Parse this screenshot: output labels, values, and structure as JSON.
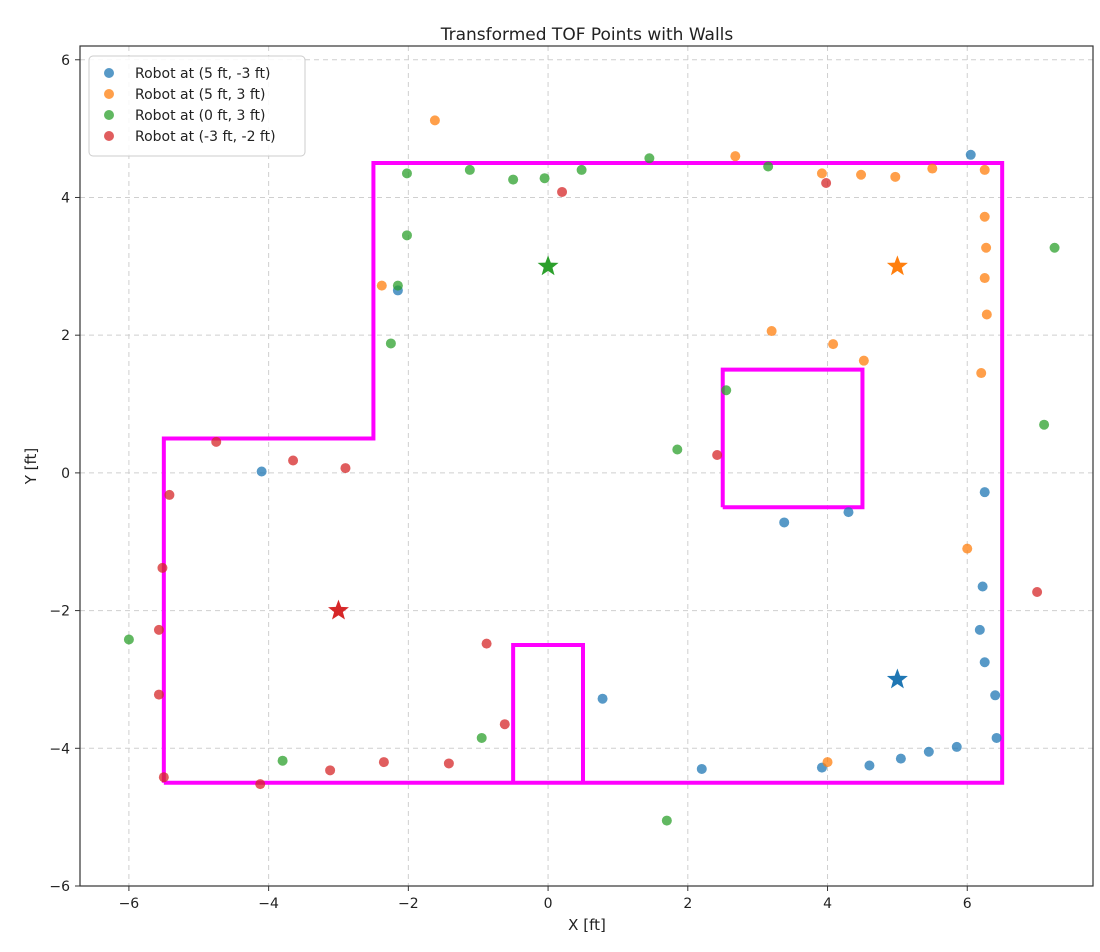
{
  "chart_data": {
    "type": "scatter",
    "title": "Transformed TOF Points with Walls",
    "xlabel": "X [ft]",
    "ylabel": "Y [ft]",
    "xlim": [
      -6.7,
      7.8
    ],
    "ylim": [
      -6,
      6.2
    ],
    "xticks": [
      -6,
      -4,
      -2,
      0,
      2,
      4,
      6
    ],
    "yticks": [
      -6,
      -4,
      -2,
      0,
      2,
      4,
      6
    ],
    "grid": true,
    "legend_position": "top-left",
    "wall_color": "#ff00ff",
    "walls": [
      [
        [
          -5.5,
          -4.5
        ],
        [
          -5.5,
          0.5
        ],
        [
          -2.5,
          0.5
        ],
        [
          -2.5,
          4.5
        ],
        [
          6.5,
          4.5
        ],
        [
          6.5,
          -4.5
        ],
        [
          -5.5,
          -4.5
        ]
      ],
      [
        [
          2.5,
          -0.5
        ],
        [
          2.5,
          1.5
        ],
        [
          4.5,
          1.5
        ],
        [
          4.5,
          -0.5
        ],
        [
          2.5,
          -0.5
        ]
      ],
      [
        [
          -0.5,
          -4.5
        ],
        [
          -0.5,
          -2.5
        ],
        [
          0.5,
          -2.5
        ],
        [
          0.5,
          -4.5
        ]
      ]
    ],
    "series": [
      {
        "name": "Robot at (5 ft, -3 ft)",
        "color": "#1f77b4",
        "robot": [
          5,
          -3
        ],
        "points": [
          [
            6.05,
            4.62
          ],
          [
            -2.15,
            2.65
          ],
          [
            -4.1,
            0.02
          ],
          [
            3.38,
            -0.72
          ],
          [
            4.3,
            -0.57
          ],
          [
            6.25,
            -0.28
          ],
          [
            6.22,
            -1.65
          ],
          [
            6.18,
            -2.28
          ],
          [
            6.25,
            -2.75
          ],
          [
            6.4,
            -3.23
          ],
          [
            6.42,
            -3.85
          ],
          [
            5.85,
            -3.98
          ],
          [
            5.45,
            -4.05
          ],
          [
            5.05,
            -4.15
          ],
          [
            4.6,
            -4.25
          ],
          [
            3.92,
            -4.28
          ],
          [
            2.2,
            -4.3
          ],
          [
            0.78,
            -3.28
          ]
        ]
      },
      {
        "name": "Robot at (5 ft, 3 ft)",
        "color": "#ff7f0e",
        "robot": [
          5,
          3
        ],
        "points": [
          [
            -1.62,
            5.12
          ],
          [
            2.68,
            4.6
          ],
          [
            3.92,
            4.35
          ],
          [
            4.48,
            4.33
          ],
          [
            4.97,
            4.3
          ],
          [
            5.5,
            4.42
          ],
          [
            6.25,
            4.4
          ],
          [
            6.25,
            3.72
          ],
          [
            6.27,
            3.27
          ],
          [
            6.25,
            2.83
          ],
          [
            6.28,
            2.3
          ],
          [
            6.2,
            1.45
          ],
          [
            4.52,
            1.63
          ],
          [
            4.08,
            1.87
          ],
          [
            3.2,
            2.06
          ],
          [
            -2.38,
            2.72
          ],
          [
            6.0,
            -1.1
          ],
          [
            4.0,
            -4.2
          ]
        ]
      },
      {
        "name": "Robot at (0 ft, 3 ft)",
        "color": "#2ca02c",
        "robot": [
          0,
          3
        ],
        "points": [
          [
            1.45,
            4.57
          ],
          [
            3.15,
            4.45
          ],
          [
            0.48,
            4.4
          ],
          [
            -0.05,
            4.28
          ],
          [
            -0.5,
            4.26
          ],
          [
            -1.12,
            4.4
          ],
          [
            -2.02,
            4.35
          ],
          [
            -2.02,
            3.45
          ],
          [
            -2.15,
            2.72
          ],
          [
            -2.25,
            1.88
          ],
          [
            2.55,
            1.2
          ],
          [
            1.85,
            0.34
          ],
          [
            7.25,
            3.27
          ],
          [
            7.1,
            0.7
          ],
          [
            -6.0,
            -2.42
          ],
          [
            -3.8,
            -4.18
          ],
          [
            -0.95,
            -3.85
          ],
          [
            1.7,
            -5.05
          ]
        ]
      },
      {
        "name": "Robot at (-3 ft, -2 ft)",
        "color": "#d62728",
        "robot": [
          -3,
          -2
        ],
        "points": [
          [
            0.2,
            4.08
          ],
          [
            3.98,
            4.21
          ],
          [
            -4.75,
            0.45
          ],
          [
            -3.65,
            0.18
          ],
          [
            -2.9,
            0.07
          ],
          [
            -5.42,
            -0.32
          ],
          [
            -5.52,
            -1.38
          ],
          [
            -5.57,
            -2.28
          ],
          [
            -5.57,
            -3.22
          ],
          [
            -5.5,
            -4.42
          ],
          [
            -4.12,
            -4.52
          ],
          [
            -3.12,
            -4.32
          ],
          [
            -2.35,
            -4.2
          ],
          [
            -1.42,
            -4.22
          ],
          [
            -0.62,
            -3.65
          ],
          [
            -0.88,
            -2.48
          ],
          [
            2.42,
            0.26
          ],
          [
            7.0,
            -1.73
          ]
        ]
      }
    ]
  }
}
